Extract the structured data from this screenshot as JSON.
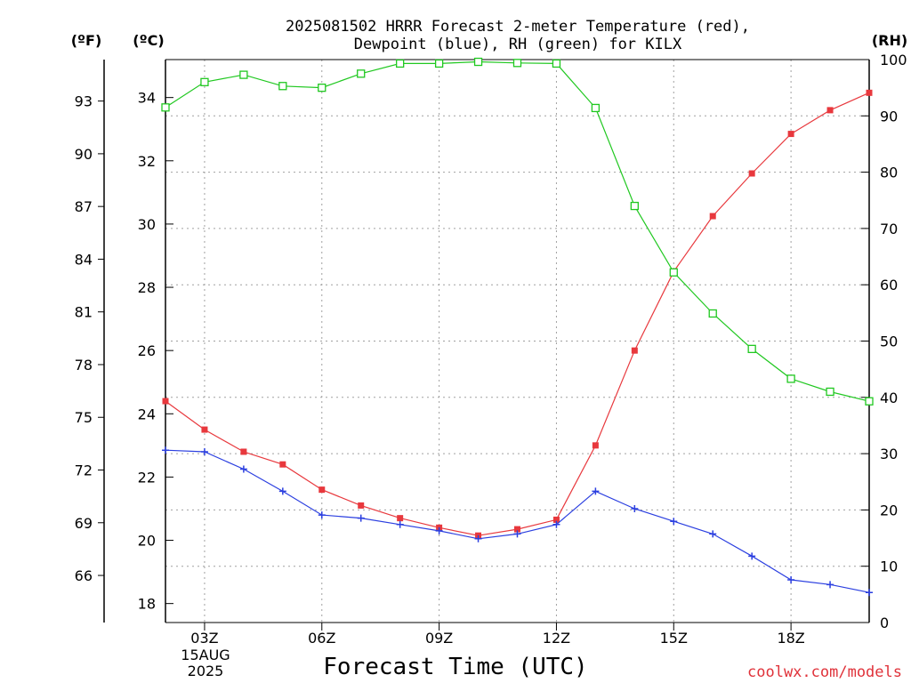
{
  "title_line1": "2025081502 HRRR Forecast 2-meter Temperature (red),",
  "title_line2": "Dewpoint (blue), RH (green) for KILX",
  "unit_f": "(ºF)",
  "unit_c": "(ºC)",
  "unit_rh": "(RH)",
  "xlabel": "Forecast Time (UTC)",
  "credit": "coolwx.com/models",
  "date_label_1": "15AUG",
  "date_label_2": "2025",
  "colors": {
    "temperature": "#e8383d",
    "dewpoint": "#2b3fe0",
    "rh": "#20c820",
    "credit": "#e0323a"
  },
  "chart_data": {
    "type": "line",
    "x": [
      "02Z",
      "03Z",
      "04Z",
      "05Z",
      "06Z",
      "07Z",
      "08Z",
      "09Z",
      "10Z",
      "11Z",
      "12Z",
      "13Z",
      "14Z",
      "15Z",
      "16Z",
      "17Z",
      "18Z",
      "19Z",
      "20Z"
    ],
    "xticks": [
      "03Z",
      "06Z",
      "09Z",
      "12Z",
      "15Z",
      "18Z"
    ],
    "series": [
      {
        "name": "Temperature (red)",
        "axis": "C",
        "color": "#e8383d",
        "marker": "filled-square",
        "values": [
          24.4,
          23.5,
          22.8,
          22.4,
          21.6,
          21.1,
          20.7,
          20.4,
          20.15,
          20.35,
          20.65,
          23.0,
          26.0,
          28.5,
          30.25,
          31.6,
          32.85,
          33.6,
          34.15
        ]
      },
      {
        "name": "Dewpoint (blue)",
        "axis": "C",
        "color": "#2b3fe0",
        "marker": "plus",
        "values": [
          22.85,
          22.8,
          22.25,
          21.55,
          20.8,
          20.7,
          20.5,
          20.3,
          20.05,
          20.2,
          20.5,
          21.55,
          21.0,
          20.6,
          20.2,
          19.5,
          18.75,
          18.6,
          18.35
        ]
      },
      {
        "name": "RH (green)",
        "axis": "RH",
        "color": "#20c820",
        "marker": "open-square",
        "values": [
          91.5,
          96.0,
          97.3,
          95.3,
          95.0,
          97.5,
          99.3,
          99.3,
          99.6,
          99.4,
          99.3,
          91.4,
          74.0,
          62.2,
          54.9,
          48.6,
          43.3,
          41.0,
          39.3
        ]
      }
    ],
    "yaxis_c": {
      "label": "(ºC)",
      "ticks": [
        18,
        20,
        22,
        24,
        26,
        28,
        30,
        32,
        34
      ],
      "range": [
        17.4,
        35.2
      ]
    },
    "yaxis_f": {
      "label": "(ºF)",
      "ticks": [
        66,
        69,
        72,
        75,
        78,
        81,
        84,
        87,
        90,
        93
      ]
    },
    "yaxis_rh": {
      "label": "(RH)",
      "ticks": [
        0,
        10,
        20,
        30,
        40,
        50,
        60,
        70,
        80,
        90,
        100
      ],
      "range": [
        0,
        100
      ]
    },
    "xlabel": "Forecast Time (UTC)",
    "grid": true
  }
}
